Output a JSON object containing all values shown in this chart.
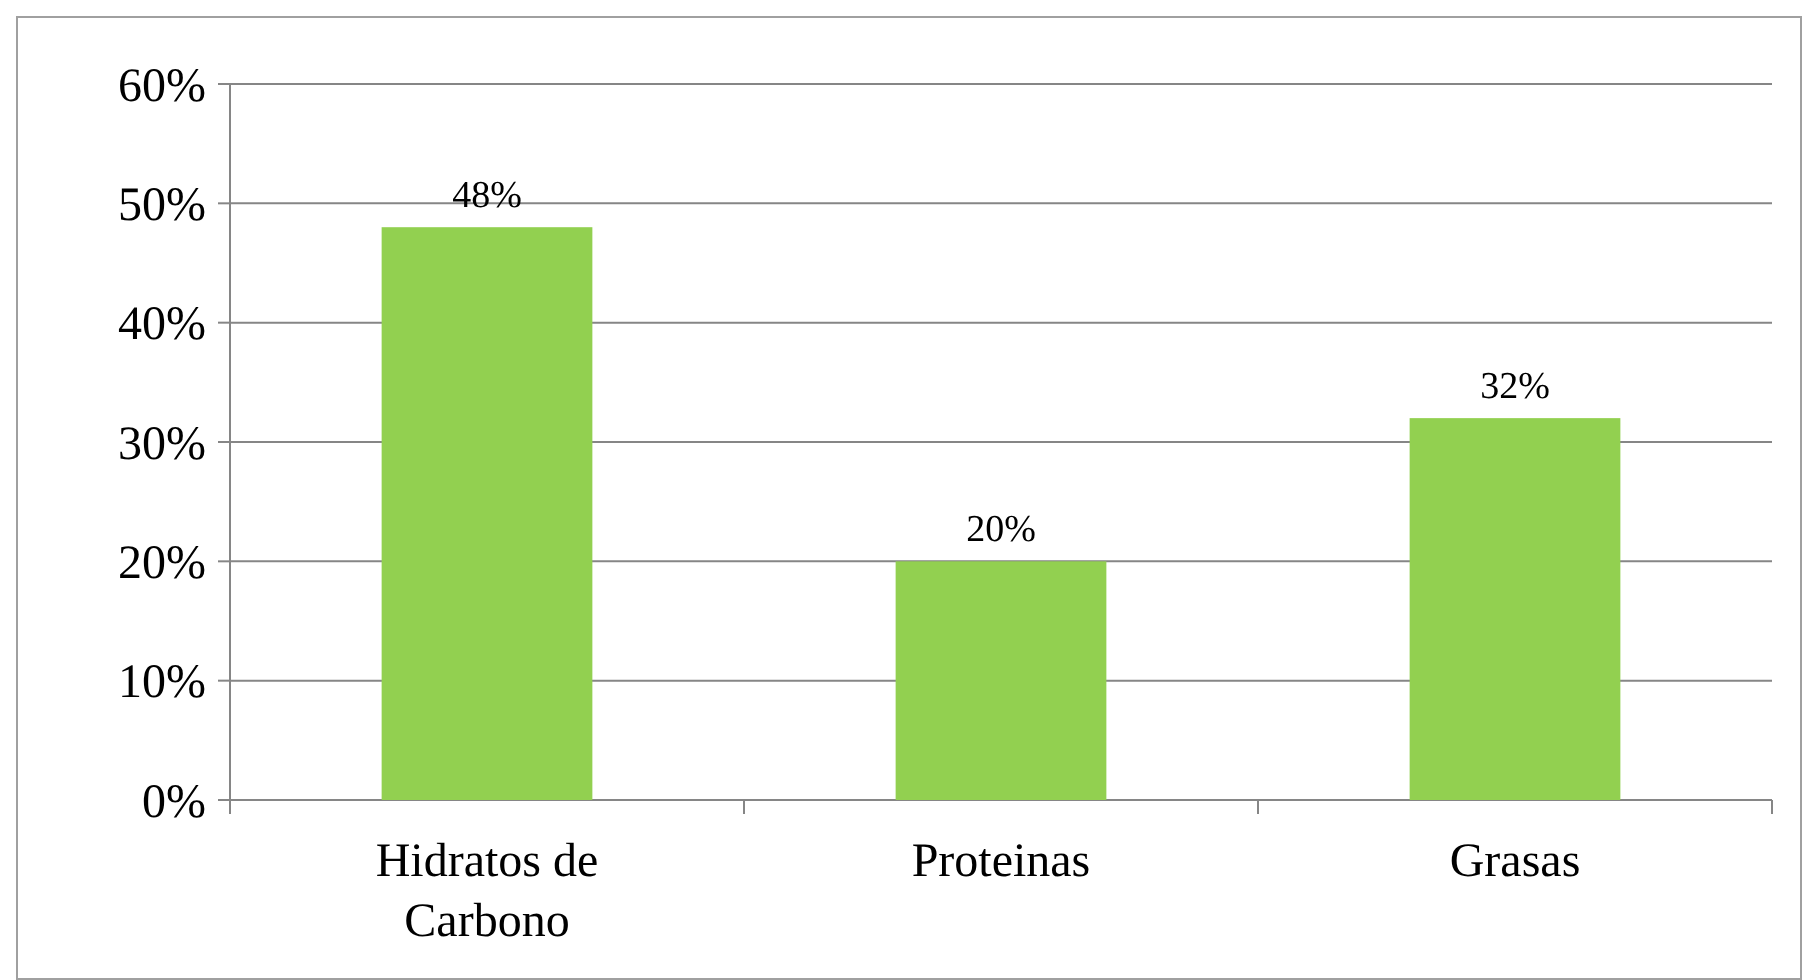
{
  "chart_data": {
    "type": "bar",
    "categories": [
      "Hidratos de Carbono",
      "Proteinas",
      "Grasas"
    ],
    "values": [
      48,
      20,
      32
    ],
    "value_labels": [
      "48%",
      "20%",
      "32%"
    ],
    "color": "#92d050",
    "ylim": [
      0,
      60
    ],
    "yticks": [
      {
        "value": 0,
        "label": "0%"
      },
      {
        "value": 10,
        "label": "10%"
      },
      {
        "value": 20,
        "label": "20%"
      },
      {
        "value": 30,
        "label": "30%"
      },
      {
        "value": 40,
        "label": "40%"
      },
      {
        "value": 50,
        "label": "50%"
      },
      {
        "value": 60,
        "label": "60%"
      }
    ],
    "grid": "y"
  }
}
